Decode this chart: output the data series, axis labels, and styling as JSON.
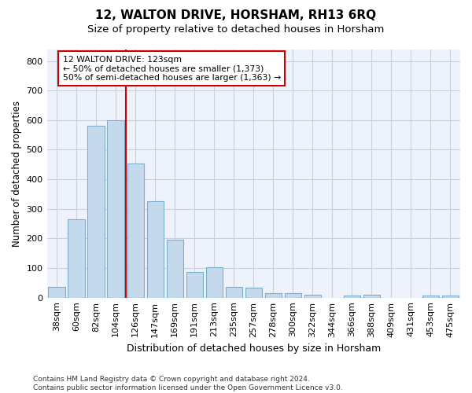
{
  "title": "12, WALTON DRIVE, HORSHAM, RH13 6RQ",
  "subtitle": "Size of property relative to detached houses in Horsham",
  "xlabel": "Distribution of detached houses by size in Horsham",
  "ylabel": "Number of detached properties",
  "categories": [
    "38sqm",
    "60sqm",
    "82sqm",
    "104sqm",
    "126sqm",
    "147sqm",
    "169sqm",
    "191sqm",
    "213sqm",
    "235sqm",
    "257sqm",
    "278sqm",
    "300sqm",
    "322sqm",
    "344sqm",
    "366sqm",
    "388sqm",
    "409sqm",
    "431sqm",
    "453sqm",
    "475sqm"
  ],
  "values": [
    37,
    265,
    580,
    600,
    453,
    327,
    196,
    88,
    102,
    37,
    33,
    15,
    15,
    10,
    0,
    8,
    10,
    0,
    0,
    7,
    8
  ],
  "bar_color": "#c5d9ed",
  "bar_edge_color": "#7aaecb",
  "vline_color": "#cc0000",
  "annotation_text": "12 WALTON DRIVE: 123sqm\n← 50% of detached houses are smaller (1,373)\n50% of semi-detached houses are larger (1,363) →",
  "annotation_box_facecolor": "#ffffff",
  "annotation_box_edgecolor": "#cc0000",
  "ylim": [
    0,
    840
  ],
  "yticks": [
    0,
    100,
    200,
    300,
    400,
    500,
    600,
    700,
    800
  ],
  "footer": "Contains HM Land Registry data © Crown copyright and database right 2024.\nContains public sector information licensed under the Open Government Licence v3.0.",
  "bg_color": "#ffffff",
  "plot_bg_color": "#eef2fb",
  "grid_color": "#c8d0e0",
  "title_fontsize": 11,
  "subtitle_fontsize": 9.5,
  "tick_fontsize": 8,
  "ylabel_fontsize": 8.5,
  "xlabel_fontsize": 9
}
